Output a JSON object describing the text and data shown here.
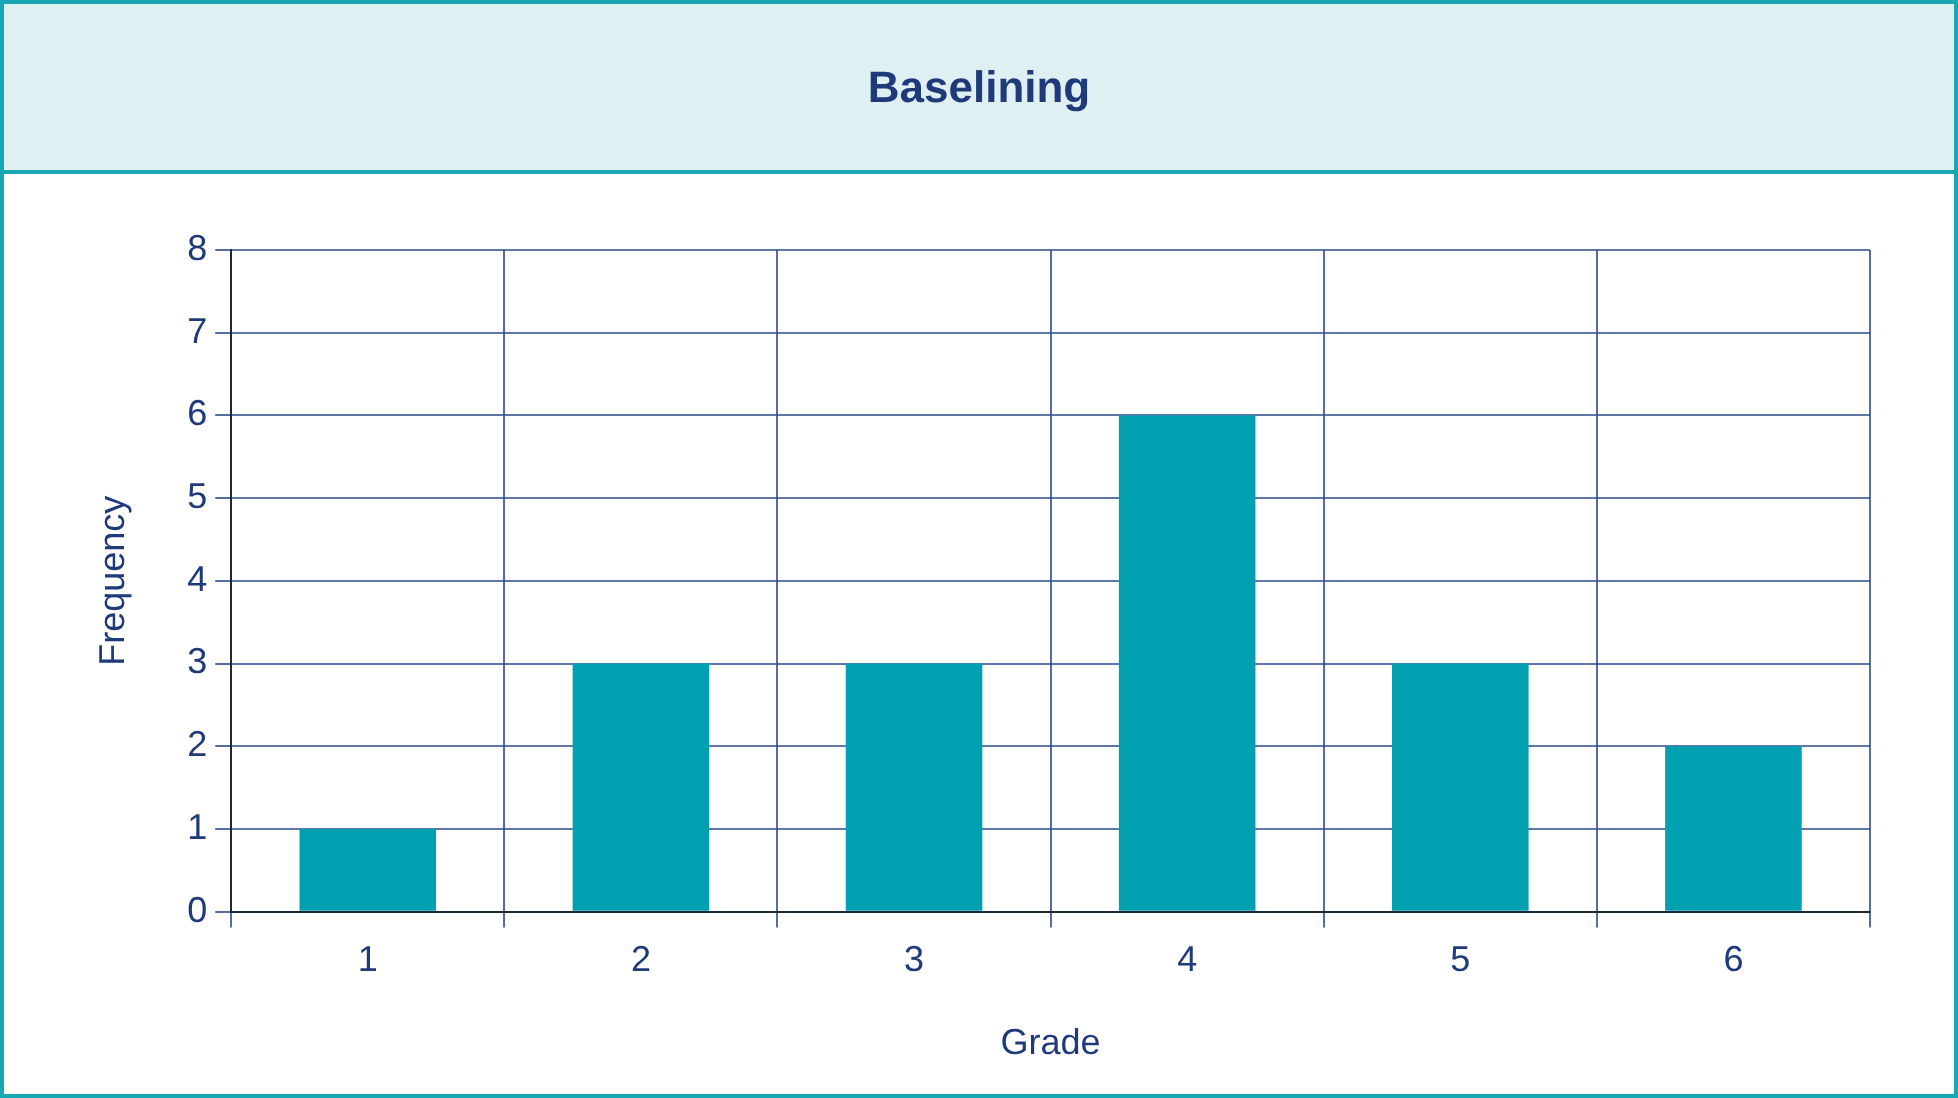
{
  "chart_data": {
    "type": "bar",
    "title": "Baselining",
    "xlabel": "Grade",
    "ylabel": "Frequency",
    "categories": [
      "1",
      "2",
      "3",
      "4",
      "5",
      "6"
    ],
    "values": [
      1,
      3,
      3,
      6,
      3,
      2
    ],
    "color": "#00a0b0",
    "ylim": [
      0,
      8
    ],
    "yticks": [
      0,
      1,
      2,
      3,
      4,
      5,
      6,
      7,
      8
    ],
    "grid": true
  }
}
